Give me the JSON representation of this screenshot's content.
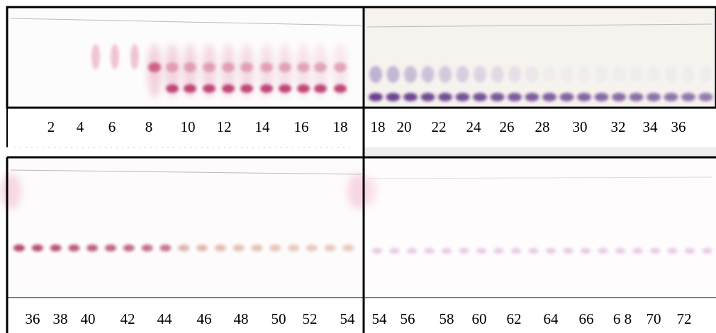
{
  "panels": [
    {
      "labels": [
        "2",
        "4",
        "6",
        "8",
        "10",
        "12",
        "14",
        "16",
        "18"
      ]
    },
    {
      "labels": [
        "18",
        "20",
        "22",
        "24",
        "26",
        "28",
        "30",
        "32",
        "34",
        "36"
      ]
    },
    {
      "labels": [
        "36",
        "38",
        "40",
        "42",
        "44",
        "46",
        "48",
        "50",
        "52",
        "54"
      ]
    },
    {
      "labels": [
        "54",
        "56",
        "58",
        "60",
        "62",
        "64",
        "66",
        "6 8",
        "70",
        "72"
      ]
    }
  ]
}
